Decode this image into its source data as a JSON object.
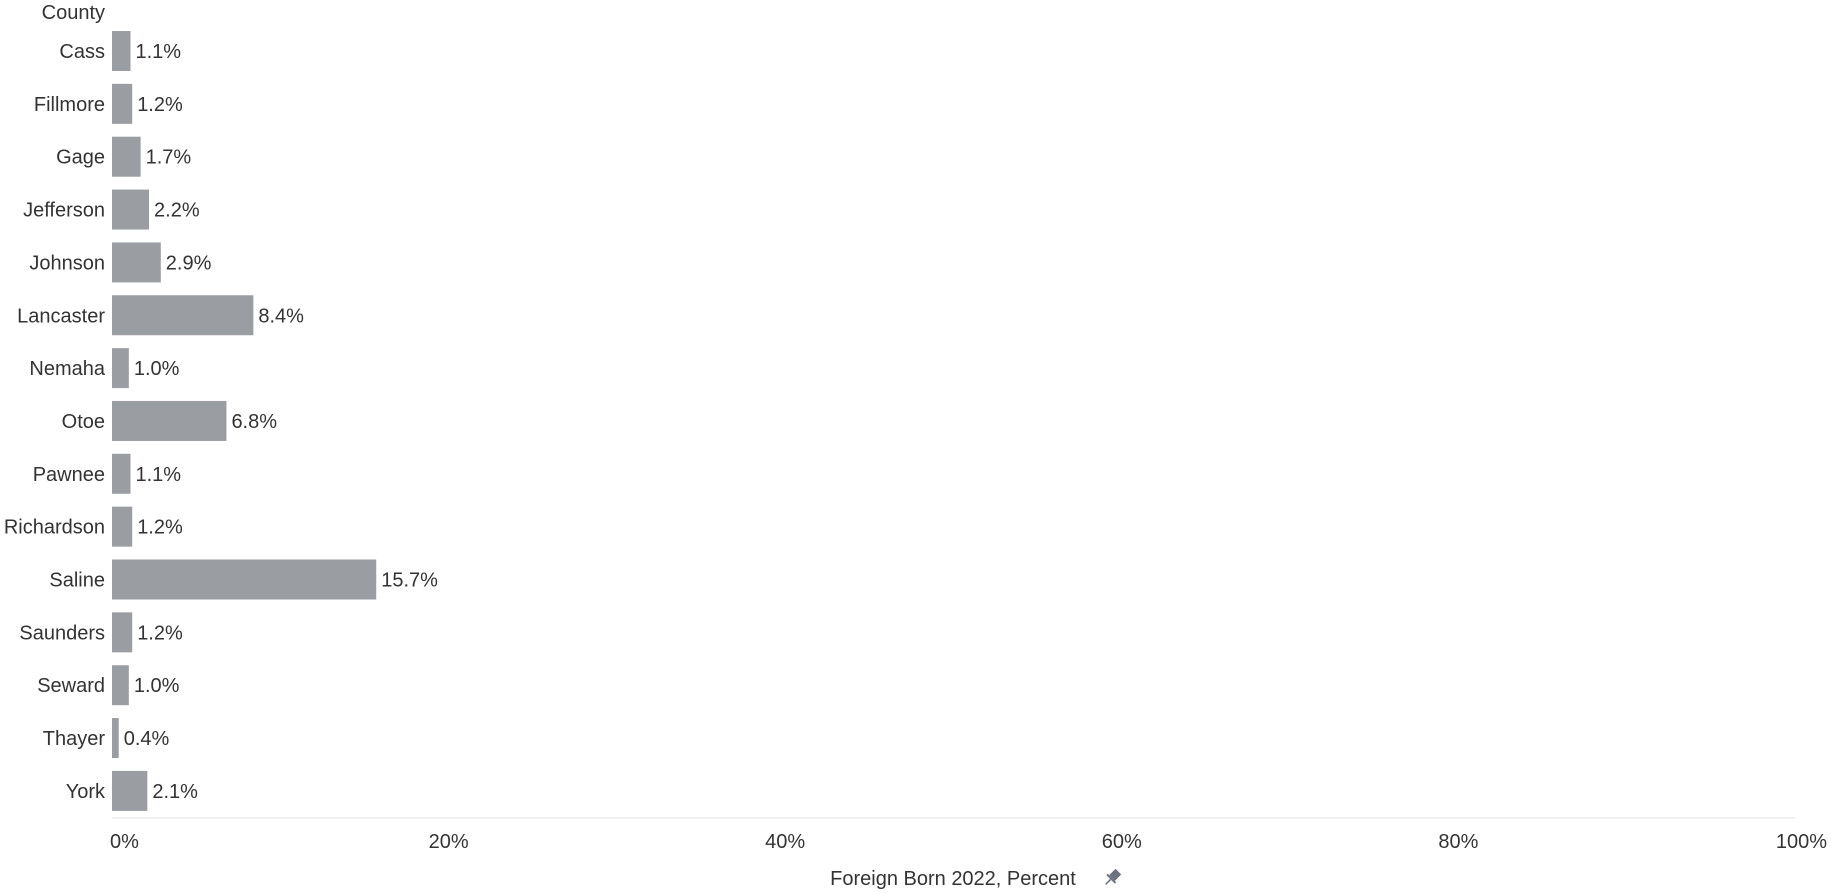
{
  "chart_data": {
    "type": "bar",
    "orientation": "horizontal",
    "category_header": "County",
    "categories": [
      "Cass",
      "Fillmore",
      "Gage",
      "Jefferson",
      "Johnson",
      "Lancaster",
      "Nemaha",
      "Otoe",
      "Pawnee",
      "Richardson",
      "Saline",
      "Saunders",
      "Seward",
      "Thayer",
      "York"
    ],
    "values": [
      1.1,
      1.2,
      1.7,
      2.2,
      2.9,
      8.4,
      1.0,
      6.8,
      1.1,
      1.2,
      15.7,
      1.2,
      1.0,
      0.4,
      2.1
    ],
    "value_labels": [
      "1.1%",
      "1.2%",
      "1.7%",
      "2.2%",
      "2.9%",
      "8.4%",
      "1.0%",
      "6.8%",
      "1.1%",
      "1.2%",
      "15.7%",
      "1.2%",
      "1.0%",
      "0.4%",
      "2.1%"
    ],
    "xlabel": "Foreign Born 2022, Percent",
    "xlim": [
      0,
      100
    ],
    "xticks": [
      0,
      20,
      40,
      60,
      80,
      100
    ],
    "xtick_labels": [
      "0%",
      "20%",
      "40%",
      "60%",
      "80%",
      "100%"
    ],
    "grid": false,
    "bar_color": "#9a9ea3",
    "pin_icon": "pin-icon"
  }
}
